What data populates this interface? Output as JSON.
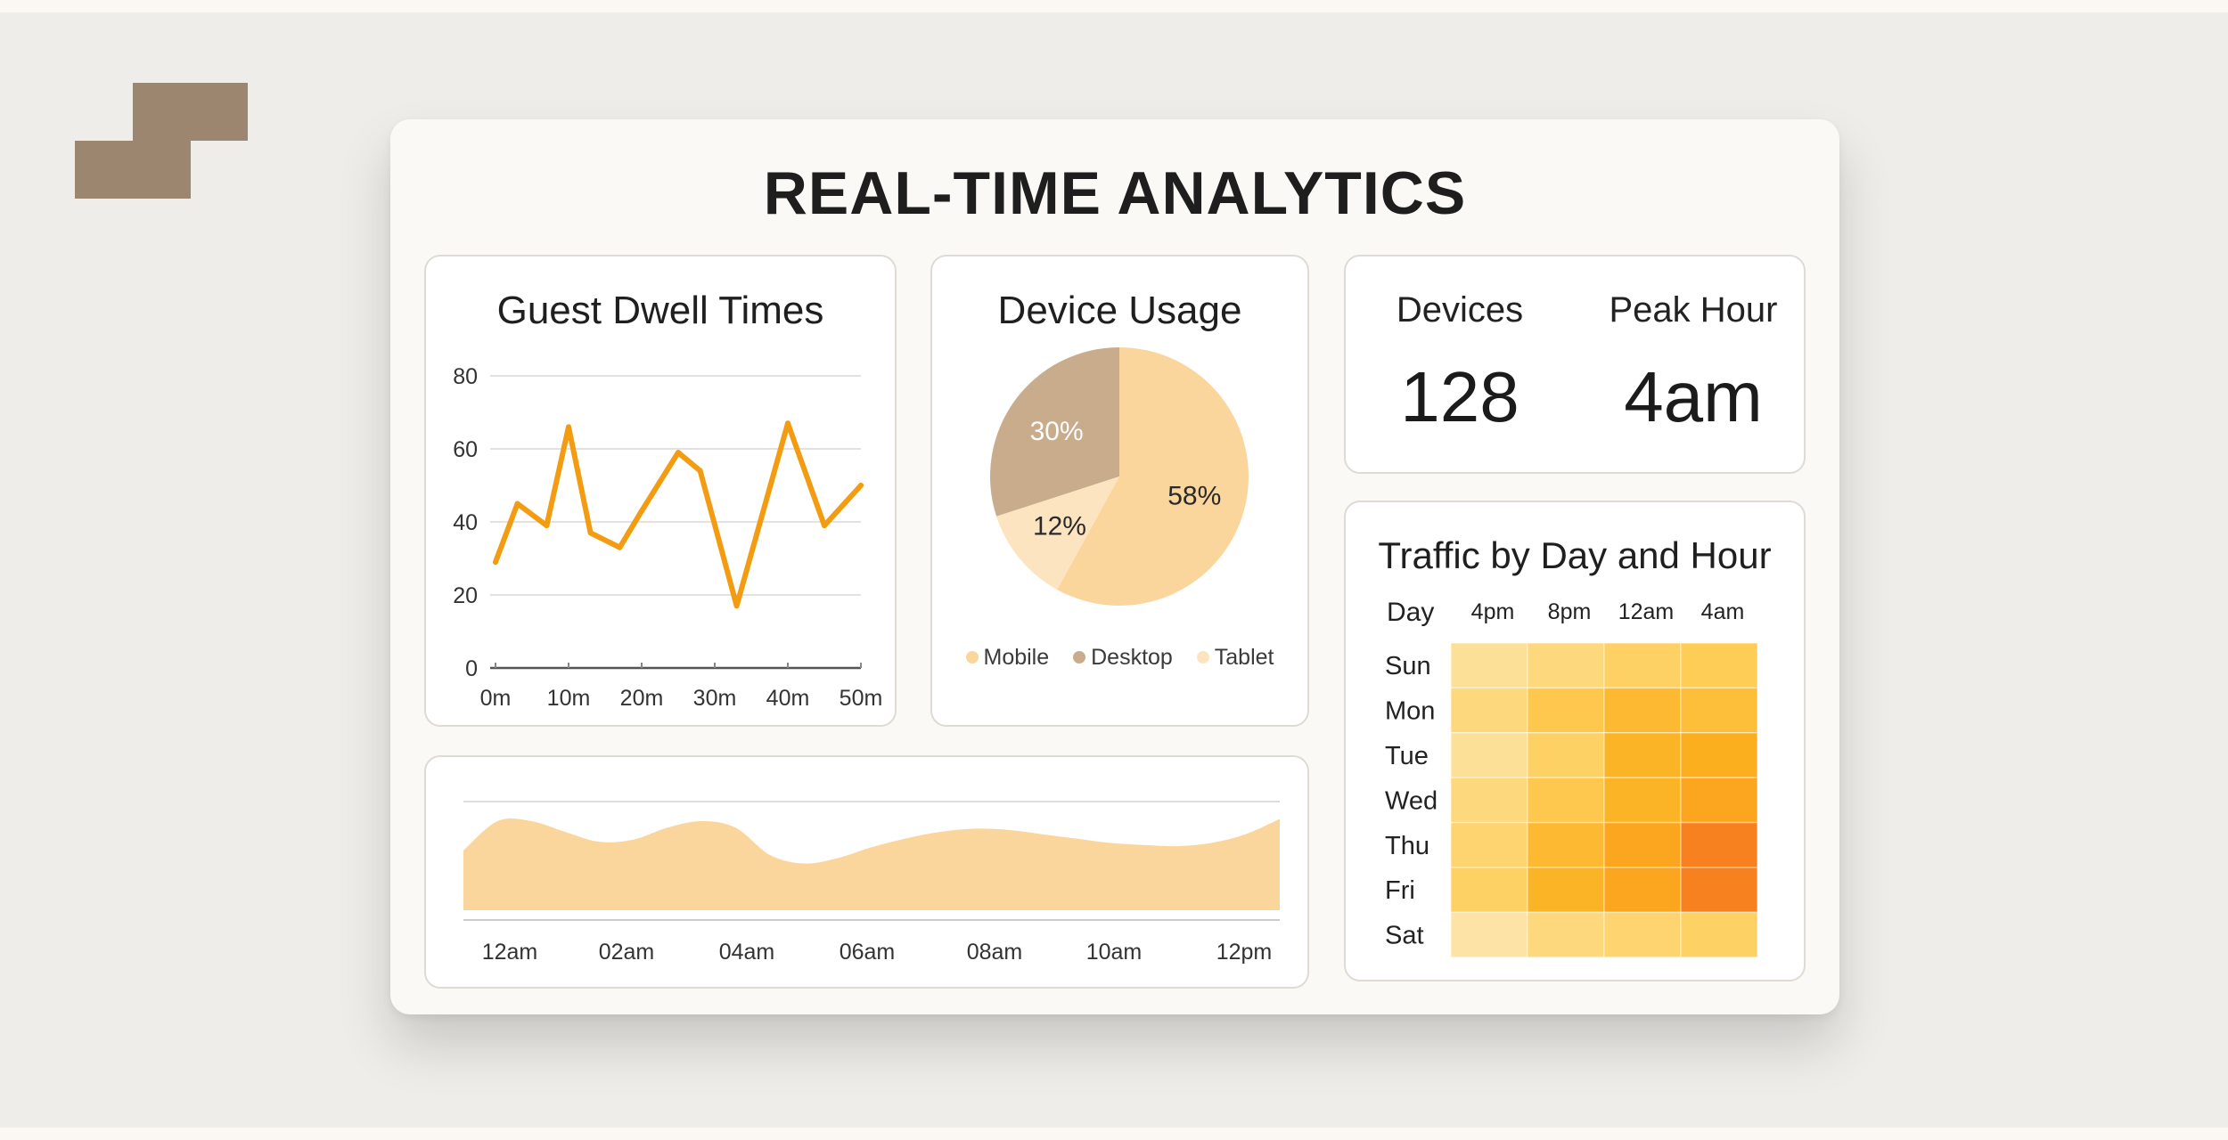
{
  "title": "REAL-TIME ANALYTICS",
  "colors": {
    "accent": "#f39c12",
    "mobile": "#fbd69c",
    "desktop": "#c9ac8c",
    "tablet": "#fde4c0",
    "logo": "#9c8670"
  },
  "logo_icon": "step-blocks-icon",
  "dwell_chart": {
    "title": "Guest Dwell Times",
    "chart_data": {
      "type": "line",
      "x": [
        "0m",
        "3m",
        "7m",
        "10m",
        "13m",
        "17m",
        "20m",
        "25m",
        "28m",
        "33m",
        "40m",
        "45m",
        "50m"
      ],
      "x_positions": [
        0,
        3,
        7,
        10,
        13,
        17,
        20,
        25,
        28,
        33,
        40,
        45,
        50
      ],
      "values": [
        29,
        45,
        39,
        66,
        37,
        33,
        43,
        59,
        54,
        17,
        67,
        39,
        50
      ],
      "xticks": [
        "0m",
        "10m",
        "20m",
        "30m",
        "40m",
        "50m"
      ],
      "yticks": [
        "0",
        "20",
        "40",
        "60",
        "80"
      ],
      "ylim": [
        0,
        80
      ],
      "xlim": [
        0,
        50
      ],
      "grid": true
    }
  },
  "device_chart": {
    "title": "Device Usage",
    "chart_data": {
      "type": "pie",
      "labels": [
        "Mobile",
        "Desktop",
        "Tablet"
      ],
      "values": [
        58,
        30,
        12
      ],
      "value_labels": [
        "58%",
        "30%",
        "12%"
      ],
      "legend": "bottom"
    }
  },
  "kpis": {
    "devices_label": "Devices",
    "devices_value": "128",
    "peak_label": "Peak Hour",
    "peak_value": "4am"
  },
  "traffic_chart": {
    "chart_data": {
      "type": "area",
      "xticks": [
        "12am",
        "02am",
        "04am",
        "06am",
        "08am",
        "10am",
        "12pm"
      ],
      "x": [
        0,
        0.5,
        1,
        1.5,
        2,
        2.5,
        3,
        3.5,
        4,
        4.5,
        5,
        5.5,
        6,
        6.5,
        7,
        7.5,
        8,
        8.5,
        9,
        9.5,
        10,
        10.5,
        11,
        11.5,
        12
      ],
      "values": [
        55,
        82,
        82,
        72,
        63,
        65,
        76,
        82,
        76,
        51,
        43,
        48,
        58,
        66,
        72,
        75,
        74,
        70,
        66,
        62,
        60,
        59,
        62,
        70,
        84
      ],
      "ylim": [
        0,
        100
      ],
      "grid": true
    }
  },
  "heatmap": {
    "title": "Traffic by Day and Hour",
    "corner_label": "Day",
    "chart_data": {
      "type": "heatmap",
      "columns": [
        "4pm",
        "8pm",
        "12am",
        "4am"
      ],
      "rows": [
        "Sun",
        "Mon",
        "Tue",
        "Wed",
        "Thu",
        "Fri",
        "Sat"
      ],
      "values": [
        [
          0.1,
          0.2,
          0.3,
          0.35
        ],
        [
          0.2,
          0.4,
          0.55,
          0.5
        ],
        [
          0.1,
          0.3,
          0.6,
          0.65
        ],
        [
          0.2,
          0.4,
          0.6,
          0.7
        ],
        [
          0.25,
          0.55,
          0.7,
          0.9
        ],
        [
          0.3,
          0.6,
          0.7,
          0.9
        ],
        [
          0.05,
          0.2,
          0.25,
          0.3
        ]
      ]
    }
  }
}
